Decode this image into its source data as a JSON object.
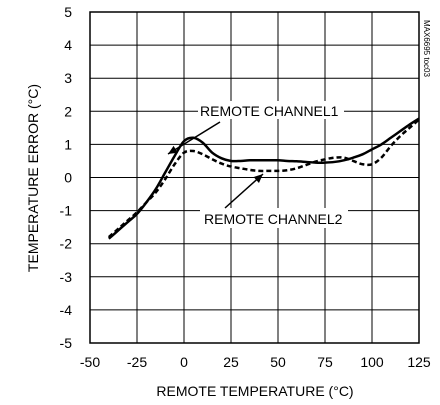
{
  "chart_data": {
    "type": "line",
    "title": "",
    "xlabel": "REMOTE TEMPERATURE (°C)",
    "ylabel": "TEMPERATURE ERROR (°C)",
    "xlim": [
      -50,
      125
    ],
    "ylim": [
      -5,
      5
    ],
    "xticks": [
      -50,
      -25,
      0,
      25,
      50,
      75,
      100,
      125
    ],
    "yticks": [
      -5,
      -4,
      -3,
      -2,
      -1,
      0,
      1,
      2,
      3,
      4,
      5
    ],
    "grid": true,
    "series": [
      {
        "name": "REMOTE CHANNEL1",
        "line_style": "solid",
        "color": "#000000",
        "x": [
          -40,
          -35,
          -30,
          -25,
          -20,
          -15,
          -10,
          -5,
          0,
          5,
          10,
          15,
          20,
          25,
          30,
          35,
          40,
          45,
          50,
          55,
          60,
          65,
          70,
          75,
          80,
          85,
          90,
          95,
          100,
          105,
          110,
          115,
          120,
          125
        ],
        "y": [
          -1.85,
          -1.6,
          -1.35,
          -1.1,
          -0.75,
          -0.35,
          0.15,
          0.65,
          1.1,
          1.2,
          1.05,
          0.75,
          0.58,
          0.5,
          0.5,
          0.52,
          0.52,
          0.52,
          0.52,
          0.5,
          0.49,
          0.47,
          0.45,
          0.45,
          0.47,
          0.52,
          0.6,
          0.7,
          0.85,
          1.0,
          1.2,
          1.4,
          1.6,
          1.78
        ]
      },
      {
        "name": "REMOTE CHANNEL2",
        "line_style": "dashed",
        "color": "#000000",
        "x": [
          -40,
          -35,
          -30,
          -25,
          -20,
          -15,
          -10,
          -5,
          0,
          5,
          10,
          15,
          20,
          25,
          30,
          35,
          40,
          45,
          50,
          55,
          60,
          65,
          70,
          75,
          80,
          85,
          90,
          95,
          100,
          105,
          110,
          115,
          120,
          125
        ],
        "y": [
          -1.8,
          -1.55,
          -1.3,
          -1.05,
          -0.75,
          -0.45,
          -0.05,
          0.4,
          0.75,
          0.8,
          0.7,
          0.55,
          0.42,
          0.33,
          0.28,
          0.23,
          0.2,
          0.2,
          0.2,
          0.22,
          0.28,
          0.38,
          0.48,
          0.55,
          0.6,
          0.6,
          0.5,
          0.4,
          0.4,
          0.6,
          0.95,
          1.25,
          1.5,
          1.75
        ]
      }
    ],
    "annotations": [
      {
        "text": "REMOTE CHANNEL1",
        "target_series": 0
      },
      {
        "text": "REMOTE CHANNEL2",
        "target_series": 1
      }
    ],
    "watermark": "MAX6695 toc03"
  }
}
